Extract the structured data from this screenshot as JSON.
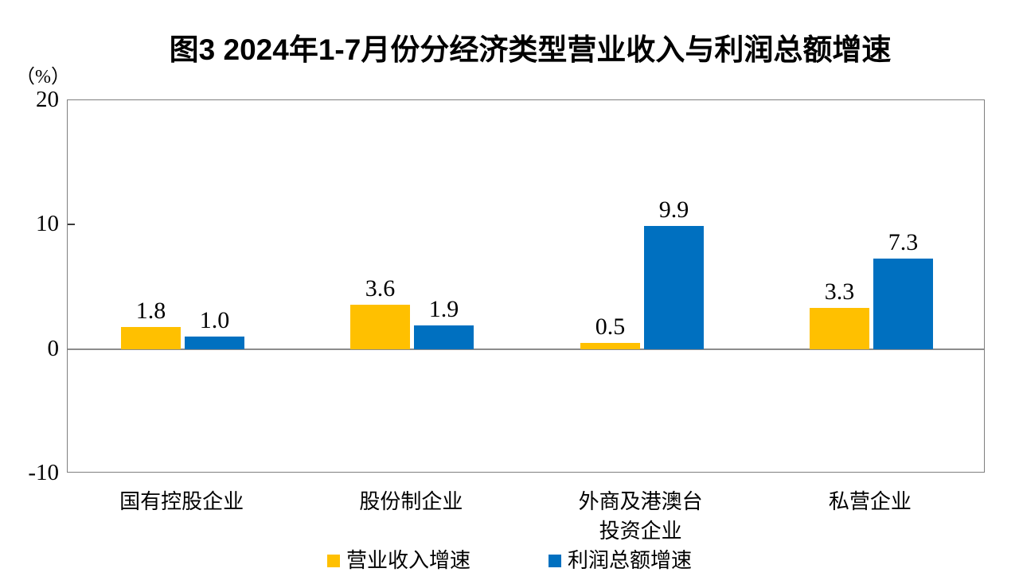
{
  "chart_data": {
    "type": "bar",
    "title": "图3  2024年1-7月份分经济类型营业收入与利润总额增速",
    "unit_label": "（%）",
    "categories": [
      "国有控股企业",
      "股份制企业",
      "外商及港澳台\n投资企业",
      "私营企业"
    ],
    "series": [
      {
        "name": "营业收入增速",
        "color": "#FFC000",
        "values": [
          1.8,
          3.6,
          0.5,
          3.3
        ]
      },
      {
        "name": "利润总额增速",
        "color": "#0070C0",
        "values": [
          1.0,
          1.9,
          9.9,
          7.3
        ]
      }
    ],
    "ylim": [
      -10,
      20
    ],
    "yticks": [
      20,
      10,
      0,
      -10
    ],
    "grid": false,
    "legend_position": "bottom",
    "axis_color": "#7f7f7f",
    "zero_line_color": "#8c8c8c"
  }
}
